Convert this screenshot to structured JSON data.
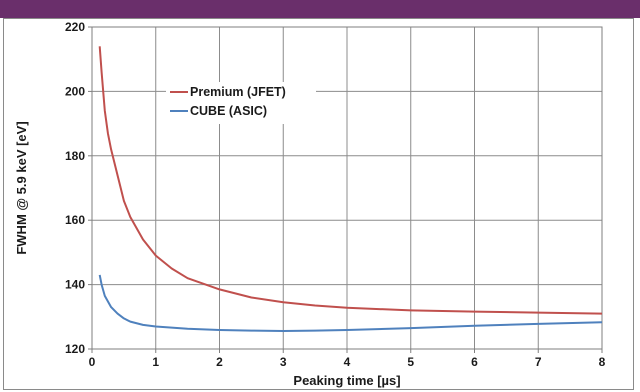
{
  "banner": {
    "visible_text": "",
    "color": "#6a2f6b"
  },
  "chart_data": {
    "type": "line",
    "title": "",
    "xlabel": "Peaking time [µs]",
    "ylabel": "FWHM @ 5.9 keV [eV]",
    "xlim": [
      0,
      8
    ],
    "ylim": [
      120,
      220
    ],
    "x_ticks": [
      "0",
      "1",
      "2",
      "3",
      "4",
      "5",
      "6",
      "7",
      "8"
    ],
    "y_ticks": [
      "120",
      "140",
      "160",
      "180",
      "200",
      "220"
    ],
    "grid": true,
    "legend_position": "upper-center",
    "series": [
      {
        "name": "Premium (JFET)",
        "color": "#c0504d",
        "x": [
          0.12,
          0.15,
          0.2,
          0.25,
          0.3,
          0.4,
          0.5,
          0.6,
          0.8,
          1.0,
          1.25,
          1.5,
          2.0,
          2.5,
          3.0,
          3.5,
          4.0,
          5.0,
          6.0,
          7.0,
          8.0
        ],
        "y": [
          214,
          206,
          194,
          187,
          182,
          174,
          166,
          161,
          154,
          149,
          145,
          142,
          138.5,
          136,
          134.5,
          133.5,
          132.8,
          132,
          131.6,
          131.3,
          131
        ]
      },
      {
        "name": "CUBE (ASIC)",
        "color": "#4f81bd",
        "x": [
          0.12,
          0.15,
          0.2,
          0.3,
          0.4,
          0.5,
          0.6,
          0.8,
          1.0,
          1.5,
          2.0,
          2.5,
          3.0,
          3.5,
          4.0,
          5.0,
          6.0,
          7.0,
          8.0
        ],
        "y": [
          143,
          140,
          136.5,
          133,
          131,
          129.5,
          128.5,
          127.5,
          127,
          126.3,
          125.9,
          125.7,
          125.6,
          125.7,
          125.9,
          126.5,
          127.2,
          127.8,
          128.3
        ]
      }
    ]
  }
}
